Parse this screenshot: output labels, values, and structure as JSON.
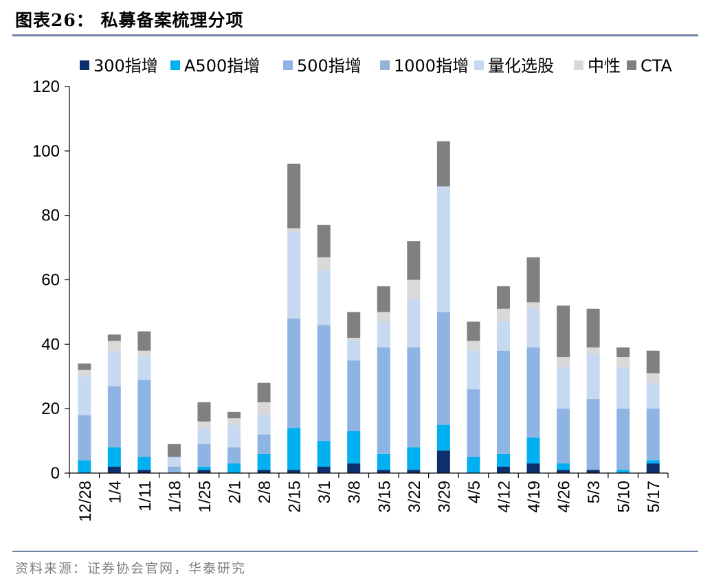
{
  "figure": {
    "title": "图表26：  私募备案梳理分项",
    "source": "资料来源：证券协会官网，华泰研究"
  },
  "chart_data": {
    "type": "bar",
    "stacked": true,
    "categories": [
      "12/28",
      "1/4",
      "1/11",
      "1/18",
      "1/25",
      "2/1",
      "2/8",
      "2/15",
      "3/1",
      "3/8",
      "3/15",
      "3/22",
      "3/29",
      "4/5",
      "4/12",
      "4/19",
      "4/26",
      "5/3",
      "5/10",
      "5/17"
    ],
    "ylim": [
      0,
      120
    ],
    "yticks": [
      0,
      20,
      40,
      60,
      80,
      100,
      120
    ],
    "legend_position": "top",
    "grid": false,
    "series": [
      {
        "name": "300指增",
        "color": "#0c2f6e",
        "values": [
          0,
          2,
          1,
          0,
          1,
          0,
          1,
          1,
          2,
          3,
          1,
          1,
          7,
          0,
          2,
          3,
          1,
          1,
          0,
          3
        ]
      },
      {
        "name": "A500指增",
        "color": "#00b0f0",
        "values": [
          4,
          6,
          4,
          0,
          1,
          3,
          5,
          13,
          8,
          10,
          5,
          7,
          8,
          5,
          4,
          8,
          2,
          0,
          1,
          1
        ]
      },
      {
        "name": "500指增",
        "color": "#8eb4e3",
        "values": [
          14,
          19,
          24,
          2,
          7,
          5,
          6,
          34,
          36,
          22,
          33,
          31,
          35,
          21,
          32,
          28,
          17,
          22,
          19,
          16
        ]
      },
      {
        "name": "1000指增",
        "color": "#95b3d7",
        "values": [
          0,
          0,
          0,
          0,
          0,
          0,
          0,
          0,
          0,
          0,
          0,
          0,
          0,
          0,
          0,
          0,
          0,
          0,
          0,
          0
        ]
      },
      {
        "name": "量化选股",
        "color": "#c6d9f1",
        "values": [
          12,
          11,
          7,
          3,
          5,
          7,
          6,
          27,
          17,
          6,
          8,
          15,
          39,
          12,
          9,
          12,
          13,
          14,
          13,
          8
        ]
      },
      {
        "name": "中性",
        "color": "#d9d9d9",
        "values": [
          2,
          3,
          2,
          0,
          2,
          2,
          4,
          1,
          4,
          1,
          3,
          6,
          0,
          3,
          4,
          2,
          3,
          2,
          3,
          3
        ]
      },
      {
        "name": "CTA",
        "color": "#808080",
        "values": [
          2,
          2,
          6,
          4,
          6,
          2,
          6,
          20,
          10,
          8,
          8,
          12,
          14,
          6,
          7,
          14,
          16,
          12,
          3,
          7
        ]
      }
    ]
  }
}
